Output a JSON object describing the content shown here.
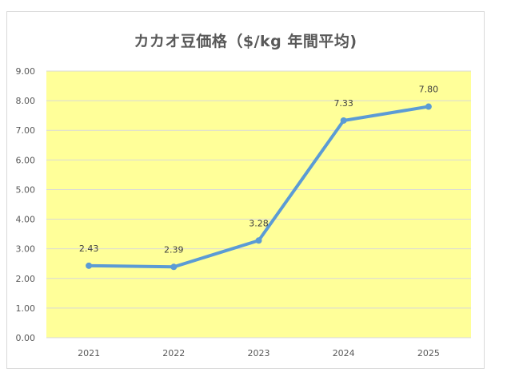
{
  "chart_data": {
    "type": "line",
    "title": "カカオ豆価格（$/kg 年間平均)",
    "xlabel": "",
    "ylabel": "",
    "categories": [
      "2021",
      "2022",
      "2023",
      "2024",
      "2025"
    ],
    "series": [
      {
        "values": [
          2.43,
          2.39,
          3.28,
          7.33,
          7.8
        ],
        "data_labels": [
          "2.43",
          "2.39",
          "3.28",
          "7.33",
          "7.80"
        ]
      }
    ],
    "ylim": [
      0,
      9
    ],
    "y_ticks": [
      "0.00",
      "1.00",
      "2.00",
      "3.00",
      "4.00",
      "5.00",
      "6.00",
      "7.00",
      "8.00",
      "9.00"
    ],
    "grid": true,
    "legend": "none",
    "colors": {
      "plot_background": "#ffff99",
      "line": "#5b9bd5",
      "gridline": "#d9d9d9"
    }
  }
}
